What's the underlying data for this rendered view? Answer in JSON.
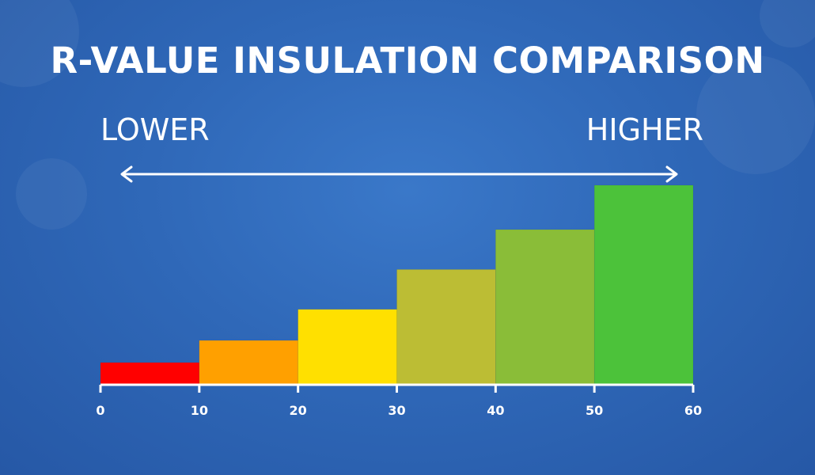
{
  "title": "R-VALUE INSULATION COMPARISON",
  "scale": {
    "low_label": "LOWER",
    "high_label": "HIGHER"
  },
  "chart_data": {
    "type": "bar",
    "categories": [
      "0-10",
      "10-20",
      "20-30",
      "30-40",
      "40-50",
      "50-60"
    ],
    "values": [
      10,
      20,
      34,
      52,
      70,
      90
    ],
    "colors": [
      "#ff0000",
      "#ffa000",
      "#ffe000",
      "#bcbd34",
      "#8abd38",
      "#4cc23a"
    ],
    "x_ticks": [
      0,
      10,
      20,
      30,
      40,
      50,
      60
    ],
    "xlim": [
      0,
      60
    ],
    "ylim": [
      0,
      100
    ],
    "title": "R-VALUE INSULATION COMPARISON",
    "xlabel": "",
    "ylabel": "",
    "grid": false,
    "legend": "none"
  },
  "colors": {
    "background": "#2f68b8",
    "text": "#ffffff",
    "axis": "#ffffff"
  }
}
